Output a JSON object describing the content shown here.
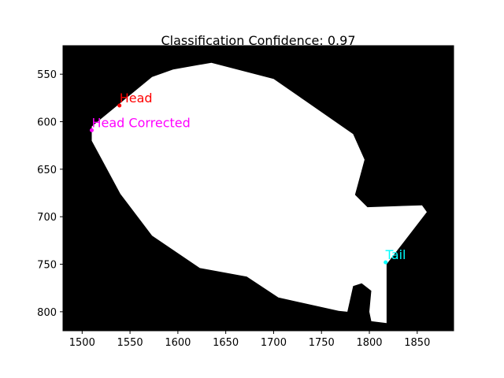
{
  "chart_data": {
    "type": "scatter",
    "title": "Classification Confidence: 0.97",
    "xlabel": "",
    "ylabel": "",
    "xlim": [
      1480,
      1888
    ],
    "ylim": [
      820,
      520
    ],
    "y_inverted": true,
    "grid": false,
    "background_color": "#000000",
    "mask_color": "#ffffff",
    "x_ticks": [
      1500,
      1550,
      1600,
      1650,
      1700,
      1750,
      1800,
      1850
    ],
    "y_ticks": [
      550,
      600,
      650,
      700,
      750,
      800
    ],
    "mask_outline": [
      [
        1635,
        538
      ],
      [
        1700,
        555
      ],
      [
        1783,
        613
      ],
      [
        1795,
        640
      ],
      [
        1785,
        677
      ],
      [
        1798,
        690
      ],
      [
        1855,
        688
      ],
      [
        1860,
        695
      ],
      [
        1818,
        750
      ],
      [
        1818,
        812
      ],
      [
        1802,
        810
      ],
      [
        1800,
        800
      ],
      [
        1802,
        778
      ],
      [
        1792,
        770
      ],
      [
        1783,
        773
      ],
      [
        1777,
        800
      ],
      [
        1768,
        799
      ],
      [
        1705,
        785
      ],
      [
        1672,
        763
      ],
      [
        1623,
        754
      ],
      [
        1573,
        720
      ],
      [
        1540,
        676
      ],
      [
        1510,
        620
      ],
      [
        1510,
        605
      ],
      [
        1573,
        553
      ],
      [
        1595,
        545
      ]
    ],
    "points": [
      {
        "name": "Head",
        "x": 1539,
        "y": 583,
        "color": "#ff0000"
      },
      {
        "name": "Head Corrected",
        "x": 1510,
        "y": 609,
        "color": "#ff00ff"
      },
      {
        "name": "Tail",
        "x": 1817,
        "y": 748,
        "color": "#00ffff"
      }
    ]
  }
}
